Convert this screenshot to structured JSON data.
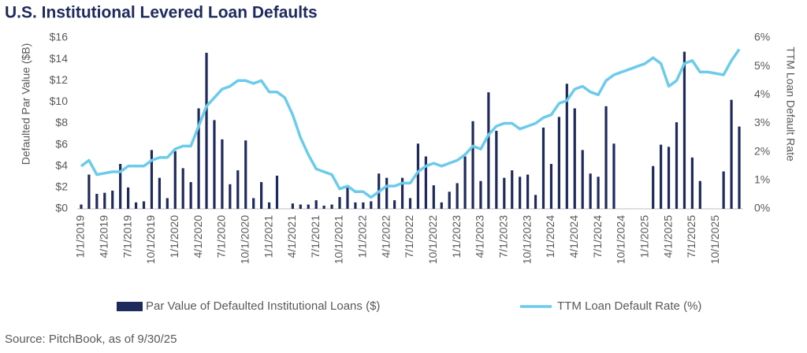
{
  "chart_data": {
    "type": "bar-line",
    "title": "U.S. Institutional Levered Loan Defaults",
    "source": "Source: PitchBook, as of 9/30/25",
    "ylabel": "Defaulted Par Value ($B)",
    "y2label": "TTM Loan Default Rate",
    "categories": [
      "1/1/2019",
      null,
      null,
      "4/1/2019",
      null,
      null,
      "7/1/2019",
      null,
      null,
      "10/1/2019",
      null,
      null,
      "1/1/2020",
      null,
      null,
      "4/1/2020",
      null,
      null,
      "7/1/2020",
      null,
      null,
      "10/1/2020",
      null,
      null,
      "1/1/2021",
      null,
      null,
      "4/1/2021",
      null,
      null,
      "7/1/2021",
      null,
      null,
      "10/1/2021",
      null,
      null,
      "1/1/2022",
      null,
      null,
      "4/1/2022",
      null,
      null,
      "7/1/2022",
      null,
      null,
      "10/1/2022",
      null,
      null,
      "1/1/2023",
      null,
      null,
      "4/1/2023",
      null,
      null,
      "7/1/2023",
      null,
      null,
      "10/1/2023",
      null,
      null,
      "1/1/2024",
      null,
      null,
      "4/1/2024",
      null,
      null,
      "7/1/2024",
      null,
      null,
      "10/1/2024",
      null,
      null,
      "1/1/2025",
      null,
      null,
      "4/1/2025",
      null,
      null,
      "7/1/2025",
      null,
      null,
      "10/1/2025",
      null,
      null,
      null
    ],
    "series": [
      {
        "name": "Par Value of Defaulted Institutional Loans ($)",
        "type": "bar",
        "color": "#1f2a5c",
        "values": [
          0.4,
          3.2,
          1.4,
          1.5,
          1.7,
          4.2,
          2.0,
          0.6,
          0.7,
          5.5,
          2.9,
          1.0,
          5.4,
          3.8,
          2.5,
          9.4,
          14.6,
          8.3,
          6.5,
          2.3,
          3.6,
          6.4,
          1.0,
          2.5,
          0.6,
          3.1,
          0,
          0.5,
          0.4,
          0.4,
          0.8,
          0.3,
          0.4,
          1.1,
          2.1,
          0.6,
          0.6,
          0.7,
          3.3,
          2.9,
          0.8,
          2.9,
          1.0,
          6.1,
          4.9,
          2.2,
          0.6,
          1.6,
          2.4,
          4.9,
          8.2,
          2.6,
          10.9,
          7.3,
          2.9,
          3.6,
          3.0,
          3.2,
          1.3,
          7.6,
          4.2,
          8.6,
          11.7,
          9.4,
          5.5,
          3.3,
          3.0,
          9.6,
          6.1,
          0,
          0,
          0,
          0,
          4.0,
          6.0,
          5.8,
          8.1,
          14.7,
          4.8,
          2.6,
          0,
          0,
          3.5,
          10.2,
          7.7
        ]
      },
      {
        "name": "TTM Loan Default Rate (%)",
        "type": "line",
        "axis": "y2",
        "color": "#6ccbeb",
        "values": [
          1.5,
          1.7,
          1.2,
          1.25,
          1.3,
          1.3,
          1.5,
          1.5,
          1.5,
          1.7,
          1.8,
          1.8,
          2.1,
          2.2,
          2.2,
          2.9,
          3.6,
          3.9,
          4.2,
          4.3,
          4.5,
          4.5,
          4.4,
          4.5,
          4.1,
          4.1,
          3.9,
          3.3,
          2.5,
          1.9,
          1.4,
          1.3,
          1.2,
          0.7,
          0.8,
          0.6,
          0.6,
          0.4,
          0.6,
          0.8,
          0.8,
          0.9,
          0.9,
          1.3,
          1.5,
          1.6,
          1.5,
          1.6,
          1.7,
          1.9,
          2.2,
          2.1,
          2.6,
          2.9,
          3.0,
          3.0,
          2.8,
          2.9,
          3.0,
          3.2,
          3.3,
          3.7,
          3.8,
          4.2,
          4.3,
          4.1,
          4.0,
          4.5,
          4.7,
          4.8,
          4.9,
          5.0,
          5.1,
          5.3,
          5.1,
          4.3,
          4.5,
          5.1,
          5.2,
          4.8,
          4.8,
          4.75,
          4.7,
          5.2,
          5.6
        ]
      }
    ],
    "ylim": [
      0,
      16
    ],
    "yticks": [
      {
        "value": 0,
        "label": "$0"
      },
      {
        "value": 2,
        "label": "$2"
      },
      {
        "value": 4,
        "label": "$4"
      },
      {
        "value": 6,
        "label": "$6"
      },
      {
        "value": 8,
        "label": "$8"
      },
      {
        "value": 10,
        "label": "$10"
      },
      {
        "value": 12,
        "label": "$12"
      },
      {
        "value": 14,
        "label": "$14"
      },
      {
        "value": 16,
        "label": "$16"
      }
    ],
    "y2lim": [
      0,
      6
    ],
    "y2ticks": [
      {
        "value": 0,
        "label": "0%"
      },
      {
        "value": 1,
        "label": "1%"
      },
      {
        "value": 2,
        "label": "2%"
      },
      {
        "value": 3,
        "label": "3%"
      },
      {
        "value": 4,
        "label": "4%"
      },
      {
        "value": 5,
        "label": "5%"
      },
      {
        "value": 6,
        "label": "6%"
      }
    ],
    "legend": "bottom"
  }
}
